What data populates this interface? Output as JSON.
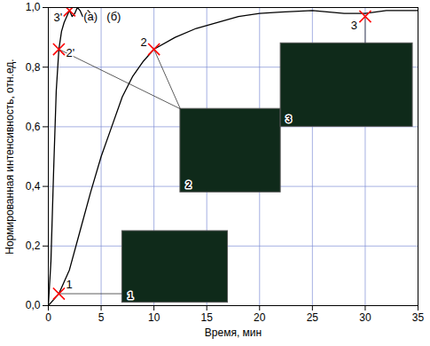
{
  "chart_data": {
    "type": "line",
    "x_label": "Время, мин",
    "y_label": "Нормированная интенсивность, отн.ед.",
    "xlim": [
      0,
      35
    ],
    "xticks": [
      0,
      5,
      10,
      15,
      20,
      25,
      30,
      35
    ],
    "ylim": [
      0,
      1
    ],
    "yticks": [
      {
        "value": 0,
        "label": "0,0"
      },
      {
        "value": 0.2,
        "label": "0,2"
      },
      {
        "value": 0.4,
        "label": "0,4"
      },
      {
        "value": 0.6,
        "label": "0,6"
      },
      {
        "value": 0.8,
        "label": "0,8"
      },
      {
        "value": 1,
        "label": "1,0"
      }
    ],
    "grid": true,
    "series": [
      {
        "color": "#000000",
        "x": [
          0,
          0.25,
          0.5,
          0.75,
          1,
          1.25,
          1.5,
          1.75,
          2,
          2.25,
          2.5,
          2.75,
          3,
          3.25,
          3.5,
          3.75,
          4,
          4.25,
          4.5
        ],
        "values": [
          0,
          0.15,
          0.45,
          0.72,
          0.86,
          0.92,
          0.95,
          0.97,
          0.99,
          0.97,
          0.98,
          1.0,
          0.99,
          0.97,
          0.97,
          0.99,
          0.98,
          0.96,
          0.97
        ]
      },
      {
        "color": "#000000",
        "x": [
          0,
          1,
          2,
          3,
          4,
          5,
          6,
          7,
          8,
          9,
          10,
          12,
          14,
          16,
          18,
          20,
          22,
          25,
          28,
          30,
          32,
          35
        ],
        "values": [
          0,
          0.04,
          0.12,
          0.25,
          0.38,
          0.5,
          0.6,
          0.7,
          0.77,
          0.82,
          0.86,
          0.9,
          0.93,
          0.95,
          0.97,
          0.98,
          0.985,
          0.99,
          0.98,
          0.98,
          0.99,
          0.99
        ]
      }
    ],
    "annotations": [
      {
        "text": "1",
        "x": 1,
        "y": 0.04,
        "marker": "x",
        "color": "#ff0000"
      },
      {
        "text": "2'",
        "x": 1,
        "y": 0.86,
        "marker": "x",
        "color": "#ff0000"
      },
      {
        "text": "3'",
        "x": 2,
        "y": 0.99,
        "marker": "x",
        "color": "#ff0000"
      },
      {
        "text": "2",
        "x": 10,
        "y": 0.86,
        "marker": "x",
        "color": "#ff0000"
      },
      {
        "text": "3",
        "x": 30,
        "y": 0.97,
        "marker": "x",
        "color": "#ff0000"
      },
      {
        "text": "(а)",
        "x": 4.0,
        "y": 0.97
      },
      {
        "text": "(б)",
        "x": 6.2,
        "y": 0.97
      }
    ],
    "insets": [
      {
        "label": "1"
      },
      {
        "label": "2"
      },
      {
        "label": "3"
      }
    ]
  }
}
